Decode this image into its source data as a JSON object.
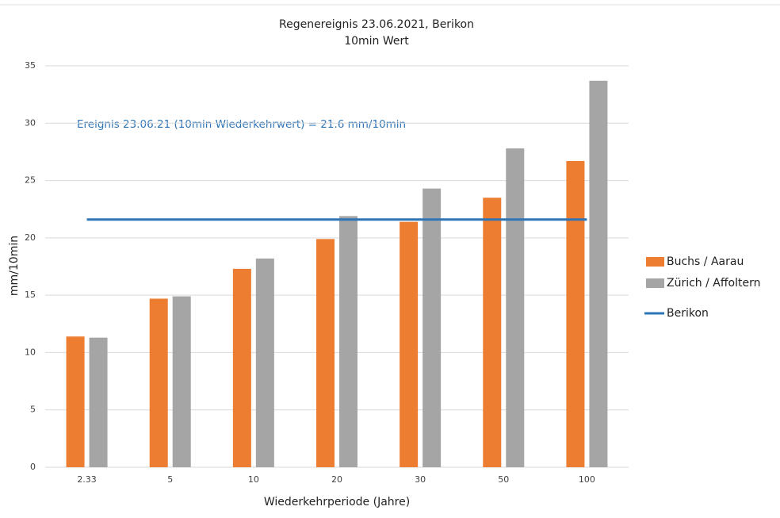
{
  "chart_data": {
    "type": "bar",
    "title": "Regenereignis 23.06.2021, Berikon",
    "subtitle": "10min Wert",
    "x_label": "Wiederkehrperiode  (Jahre)",
    "y_label": "mm/10min",
    "annotation": "Ereignis 23.06.21 (10min Wiederkehrwert) = 21.6 mm/10min",
    "annotation_color": "#2e75b6",
    "categories": [
      "2.33",
      "5",
      "10",
      "20",
      "30",
      "50",
      "100"
    ],
    "series": [
      {
        "name": "Buchs / Aarau",
        "color": "#ed7d31",
        "values": [
          11.4,
          14.7,
          17.3,
          19.9,
          21.4,
          23.5,
          26.7
        ]
      },
      {
        "name": "Zürich / Affoltern",
        "color": "#a5a5a5",
        "values": [
          11.3,
          14.9,
          18.2,
          21.9,
          24.3,
          27.8,
          33.7
        ]
      },
      {
        "name": "Berikon",
        "color": "#2e75b6",
        "type": "line",
        "values": [
          21.6,
          21.6,
          21.6,
          21.6,
          21.6,
          21.6,
          21.6
        ]
      }
    ],
    "ylim": [
      0,
      35
    ],
    "yticks": [
      0,
      5,
      10,
      15,
      20,
      25,
      30,
      35
    ],
    "grid": true,
    "legend": "right"
  }
}
